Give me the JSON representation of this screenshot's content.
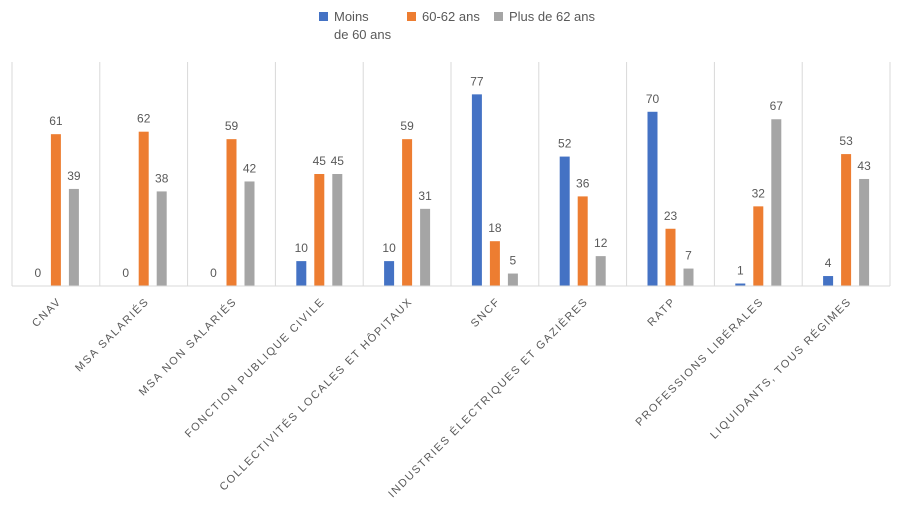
{
  "chart_data": {
    "type": "bar",
    "title": "",
    "xlabel": "",
    "ylabel": "",
    "ylim": [
      0,
      90
    ],
    "grid": false,
    "legend_position": "top",
    "categories": [
      "CNAV",
      "MSA SALARIÉS",
      "MSA NON SALARIÉS",
      "FONCTION PUBLIQUE CIVILE",
      "COLLECTIVITÉS LOCALES ET HÔPITAUX",
      "SNCF",
      "INDUSTRIES ÉLECTRIQUES ET GAZIÈRES",
      "RATP",
      "PROFESSIONS LIBÉRALES",
      "LIQUIDANTS, TOUS RÉGIMES"
    ],
    "series": [
      {
        "name": "Moins\nde 60 ans",
        "color": "#4472C4",
        "values": [
          0,
          0,
          0,
          10,
          10,
          77,
          52,
          70,
          1,
          4
        ]
      },
      {
        "name": "60-62 ans",
        "color": "#ED7D31",
        "values": [
          61,
          62,
          59,
          45,
          59,
          18,
          36,
          23,
          32,
          53
        ]
      },
      {
        "name": "Plus de 62 ans",
        "color": "#A5A5A5",
        "values": [
          39,
          38,
          42,
          45,
          31,
          5,
          12,
          7,
          67,
          43
        ]
      }
    ]
  }
}
